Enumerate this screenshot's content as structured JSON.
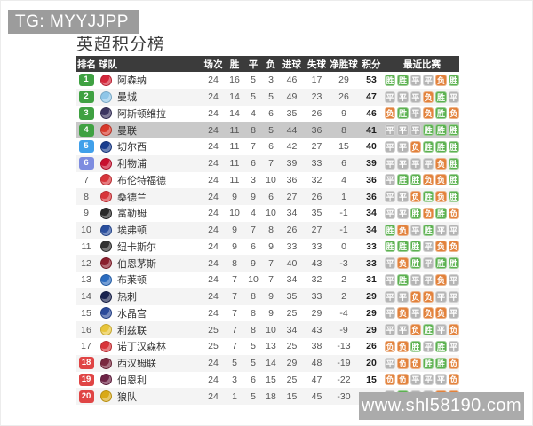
{
  "page": {
    "tg_label": "TG: MYYJJPP",
    "title": "英超积分榜",
    "watermark": "www.shl58190.com"
  },
  "colors": {
    "header_bg": "#3b3b3b",
    "highlight_row": "#c9c9c9",
    "row_alt": "#f4f4f4",
    "win": "#5cb150",
    "draw": "#b5b5b5",
    "loss": "#e2823c"
  },
  "rank_styles": {
    "green": "#3fa142",
    "blue": "#41a0ea",
    "indigo": "#7d8ce0",
    "red": "#e04545"
  },
  "results": {
    "win": "胜",
    "draw": "平",
    "loss": "负"
  },
  "table": {
    "headers": [
      "排名",
      "球队",
      "场次",
      "胜",
      "平",
      "负",
      "进球",
      "失球",
      "净胜球",
      "积分",
      "最近比赛"
    ],
    "rows": [
      {
        "rank": 1,
        "rank_style": "green",
        "team": "阿森纳",
        "logo_color": "#d4263a",
        "played": 24,
        "won": 16,
        "drawn": 5,
        "lost": 3,
        "gf": 46,
        "ga": 17,
        "gd": 29,
        "pts": 53,
        "highlight": false,
        "recent": [
          "win",
          "win",
          "draw",
          "draw",
          "loss",
          "win"
        ]
      },
      {
        "rank": 2,
        "rank_style": "green",
        "team": "曼城",
        "logo_color": "#8fc6e8",
        "played": 24,
        "won": 14,
        "drawn": 5,
        "lost": 5,
        "gf": 49,
        "ga": 23,
        "gd": 26,
        "pts": 47,
        "highlight": false,
        "recent": [
          "draw",
          "draw",
          "draw",
          "loss",
          "win",
          "draw"
        ]
      },
      {
        "rank": 3,
        "rank_style": "green",
        "team": "阿斯顿维拉",
        "logo_color": "#3b3561",
        "played": 24,
        "won": 14,
        "drawn": 4,
        "lost": 6,
        "gf": 35,
        "ga": 26,
        "gd": 9,
        "pts": 46,
        "highlight": false,
        "recent": [
          "loss",
          "win",
          "draw",
          "loss",
          "win",
          "loss"
        ]
      },
      {
        "rank": 4,
        "rank_style": "green",
        "team": "曼联",
        "logo_color": "#d8392b",
        "played": 24,
        "won": 11,
        "drawn": 8,
        "lost": 5,
        "gf": 44,
        "ga": 36,
        "gd": 8,
        "pts": 41,
        "highlight": true,
        "recent": [
          "draw",
          "draw",
          "draw",
          "win",
          "win",
          "win"
        ]
      },
      {
        "rank": 5,
        "rank_style": "blue",
        "team": "切尔西",
        "logo_color": "#1a3e8f",
        "played": 24,
        "won": 11,
        "drawn": 7,
        "lost": 6,
        "gf": 42,
        "ga": 27,
        "gd": 15,
        "pts": 40,
        "highlight": false,
        "recent": [
          "draw",
          "draw",
          "loss",
          "win",
          "win",
          "win"
        ]
      },
      {
        "rank": 6,
        "rank_style": "indigo",
        "team": "利物浦",
        "logo_color": "#c8102e",
        "played": 24,
        "won": 11,
        "drawn": 6,
        "lost": 7,
        "gf": 39,
        "ga": 33,
        "gd": 6,
        "pts": 39,
        "highlight": false,
        "recent": [
          "draw",
          "draw",
          "draw",
          "draw",
          "loss",
          "win"
        ]
      },
      {
        "rank": 7,
        "rank_style": "none",
        "team": "布伦特福德",
        "logo_color": "#d8343a",
        "played": 24,
        "won": 11,
        "drawn": 3,
        "lost": 10,
        "gf": 36,
        "ga": 32,
        "gd": 4,
        "pts": 36,
        "highlight": false,
        "recent": [
          "draw",
          "win",
          "win",
          "loss",
          "loss",
          "win"
        ]
      },
      {
        "rank": 8,
        "rank_style": "none",
        "team": "桑德兰",
        "logo_color": "#d8343a",
        "played": 24,
        "won": 9,
        "drawn": 9,
        "lost": 6,
        "gf": 27,
        "ga": 26,
        "gd": 1,
        "pts": 36,
        "highlight": false,
        "recent": [
          "draw",
          "draw",
          "loss",
          "win",
          "loss",
          "win"
        ]
      },
      {
        "rank": 9,
        "rank_style": "none",
        "team": "富勒姆",
        "logo_color": "#2b2b2b",
        "played": 24,
        "won": 10,
        "drawn": 4,
        "lost": 10,
        "gf": 34,
        "ga": 35,
        "gd": -1,
        "pts": 34,
        "highlight": false,
        "recent": [
          "draw",
          "draw",
          "win",
          "loss",
          "win",
          "loss"
        ]
      },
      {
        "rank": 10,
        "rank_style": "none",
        "team": "埃弗顿",
        "logo_color": "#2a4f9e",
        "played": 24,
        "won": 9,
        "drawn": 7,
        "lost": 8,
        "gf": 26,
        "ga": 27,
        "gd": -1,
        "pts": 34,
        "highlight": false,
        "recent": [
          "win",
          "loss",
          "draw",
          "win",
          "draw",
          "draw"
        ]
      },
      {
        "rank": 11,
        "rank_style": "none",
        "team": "纽卡斯尔",
        "logo_color": "#333333",
        "played": 24,
        "won": 9,
        "drawn": 6,
        "lost": 9,
        "gf": 33,
        "ga": 33,
        "gd": 0,
        "pts": 33,
        "highlight": false,
        "recent": [
          "win",
          "win",
          "win",
          "draw",
          "loss",
          "loss"
        ]
      },
      {
        "rank": 12,
        "rank_style": "none",
        "team": "伯恩茅斯",
        "logo_color": "#8a1e2c",
        "played": 24,
        "won": 8,
        "drawn": 9,
        "lost": 7,
        "gf": 40,
        "ga": 43,
        "gd": -3,
        "pts": 33,
        "highlight": false,
        "recent": [
          "draw",
          "loss",
          "win",
          "draw",
          "win",
          "win"
        ]
      },
      {
        "rank": 13,
        "rank_style": "none",
        "team": "布莱顿",
        "logo_color": "#2a6bbf",
        "played": 24,
        "won": 7,
        "drawn": 10,
        "lost": 7,
        "gf": 34,
        "ga": 32,
        "gd": 2,
        "pts": 31,
        "highlight": false,
        "recent": [
          "draw",
          "win",
          "draw",
          "draw",
          "loss",
          "draw"
        ]
      },
      {
        "rank": 14,
        "rank_style": "none",
        "team": "热刺",
        "logo_color": "#1b2450",
        "played": 24,
        "won": 7,
        "drawn": 8,
        "lost": 9,
        "gf": 35,
        "ga": 33,
        "gd": 2,
        "pts": 29,
        "highlight": false,
        "recent": [
          "draw",
          "draw",
          "loss",
          "loss",
          "draw",
          "draw"
        ]
      },
      {
        "rank": 15,
        "rank_style": "none",
        "team": "水晶宫",
        "logo_color": "#2b4a9b",
        "played": 24,
        "won": 7,
        "drawn": 8,
        "lost": 9,
        "gf": 25,
        "ga": 29,
        "gd": -4,
        "pts": 29,
        "highlight": false,
        "recent": [
          "draw",
          "loss",
          "draw",
          "loss",
          "loss",
          "draw"
        ]
      },
      {
        "rank": 16,
        "rank_style": "none",
        "team": "利兹联",
        "logo_color": "#e8c53a",
        "played": 25,
        "won": 7,
        "drawn": 8,
        "lost": 10,
        "gf": 34,
        "ga": 43,
        "gd": -9,
        "pts": 29,
        "highlight": false,
        "recent": [
          "draw",
          "draw",
          "loss",
          "win",
          "draw",
          "loss"
        ]
      },
      {
        "rank": 17,
        "rank_style": "none",
        "team": "诺丁汉森林",
        "logo_color": "#d8343a",
        "played": 25,
        "won": 7,
        "drawn": 5,
        "lost": 13,
        "gf": 25,
        "ga": 38,
        "gd": -13,
        "pts": 26,
        "highlight": false,
        "recent": [
          "loss",
          "loss",
          "win",
          "draw",
          "win",
          "draw"
        ]
      },
      {
        "rank": 18,
        "rank_style": "red",
        "team": "西汉姆联",
        "logo_color": "#7a2940",
        "played": 24,
        "won": 5,
        "drawn": 5,
        "lost": 14,
        "gf": 29,
        "ga": 48,
        "gd": -19,
        "pts": 20,
        "highlight": false,
        "recent": [
          "draw",
          "loss",
          "loss",
          "win",
          "win",
          "loss"
        ]
      },
      {
        "rank": 19,
        "rank_style": "red",
        "team": "伯恩利",
        "logo_color": "#6d2346",
        "played": 24,
        "won": 3,
        "drawn": 6,
        "lost": 15,
        "gf": 25,
        "ga": 47,
        "gd": -22,
        "pts": 15,
        "highlight": false,
        "recent": [
          "loss",
          "loss",
          "draw",
          "draw",
          "draw",
          "loss"
        ]
      },
      {
        "rank": 20,
        "rank_style": "red",
        "team": "狼队",
        "logo_color": "#d9a916",
        "played": 24,
        "won": 1,
        "drawn": 5,
        "lost": 18,
        "gf": 15,
        "ga": 45,
        "gd": -30,
        "pts": 8,
        "highlight": false,
        "recent": [
          "draw",
          "win",
          "draw",
          "draw",
          "loss",
          "loss"
        ]
      }
    ]
  }
}
